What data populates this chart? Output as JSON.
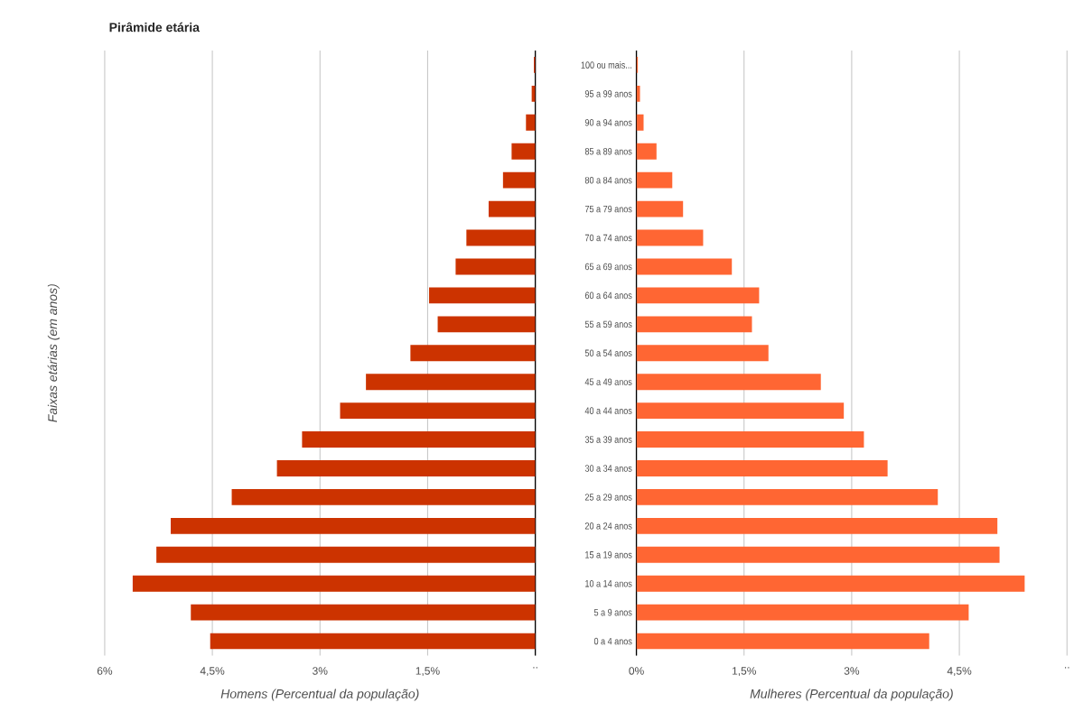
{
  "chart_data": [
    {
      "type": "bar",
      "orientation": "horizontal",
      "title": "Pirâmide etária",
      "ylabel": "Faixas etárias (em anos)",
      "xlabel": "Homens (Percentual da população)",
      "series": [
        {
          "color": "#cc3300",
          "values": [
            0.02,
            0.05,
            0.13,
            0.33,
            0.45,
            0.65,
            0.96,
            1.11,
            1.48,
            1.36,
            1.74,
            2.36,
            2.72,
            3.25,
            3.6,
            4.23,
            5.08,
            5.28,
            5.61,
            4.8,
            4.53
          ]
        }
      ],
      "xlim": [
        6,
        0
      ],
      "xticks": [
        {
          "value": 6,
          "label": "6%"
        },
        {
          "value": 4.5,
          "label": "4,5%"
        },
        {
          "value": 3,
          "label": "3%"
        },
        {
          "value": 1.5,
          "label": "1,5%"
        },
        {
          "value": 0,
          "label": ".."
        }
      ],
      "grid": "x"
    },
    {
      "type": "bar",
      "orientation": "horizontal",
      "xlabel": "Mulheres (Percentual da população)",
      "categories": [
        "100 ou mais...",
        "95 a 99 anos",
        "90 a 94 anos",
        "85 a 89 anos",
        "80 a 84 anos",
        "75 a 79 anos",
        "70 a 74 anos",
        "65 a 69 anos",
        "60 a 64 anos",
        "55 a 59 anos",
        "50 a 54 anos",
        "45 a 49 anos",
        "40 a 44 anos",
        "35 a 39 anos",
        "30 a 34 anos",
        "25 a 29 anos",
        "20 a 24 anos",
        "15 a 19 anos",
        "10 a 14 anos",
        "5 a 9 anos",
        "0 a 4 anos"
      ],
      "series": [
        {
          "color": "#ff6633",
          "values": [
            0.02,
            0.05,
            0.1,
            0.28,
            0.5,
            0.65,
            0.93,
            1.33,
            1.71,
            1.61,
            1.84,
            2.57,
            2.89,
            3.17,
            3.5,
            4.2,
            5.03,
            5.06,
            5.41,
            4.63,
            4.08
          ]
        }
      ],
      "xlim": [
        0,
        6
      ],
      "xticks": [
        {
          "value": 0,
          "label": "0%"
        },
        {
          "value": 1.5,
          "label": "1,5%"
        },
        {
          "value": 3,
          "label": "3%"
        },
        {
          "value": 4.5,
          "label": "4,5%"
        },
        {
          "value": 6,
          "label": ".."
        }
      ],
      "grid": "x"
    }
  ]
}
